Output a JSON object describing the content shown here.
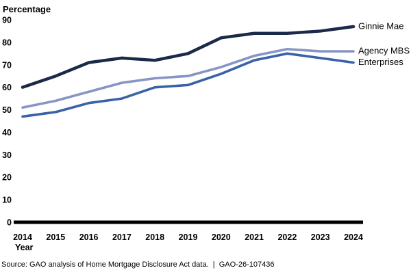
{
  "chart_data": {
    "type": "line",
    "title": "",
    "ylabel": "Percentage",
    "xlabel": "Year",
    "ylim": [
      0,
      90
    ],
    "yticks": [
      0,
      10,
      20,
      30,
      40,
      50,
      60,
      70,
      80,
      90
    ],
    "x": [
      2014,
      2015,
      2016,
      2017,
      2018,
      2019,
      2020,
      2021,
      2022,
      2023,
      2024
    ],
    "series": [
      {
        "name": "Ginnie Mae",
        "color": "#1b2a48",
        "stroke_width": 4.5,
        "values": [
          60,
          65,
          71,
          73,
          72,
          75,
          82,
          84,
          84,
          85,
          87
        ]
      },
      {
        "name": "Agency MBS",
        "color": "#8795c4",
        "stroke_width": 3.6,
        "values": [
          51,
          54,
          58,
          62,
          64,
          65,
          69,
          74,
          77,
          76,
          76
        ]
      },
      {
        "name": "Enterprises",
        "color": "#3a62a6",
        "stroke_width": 3.6,
        "values": [
          47,
          49,
          53,
          55,
          60,
          61,
          66,
          72,
          75,
          73,
          71
        ]
      }
    ],
    "grid": false,
    "legend_position": "right-end-labels",
    "axis_color": "#000000"
  },
  "source": {
    "text": "Source: GAO analysis of Home Mortgage Disclosure Act data.  |  GAO-26-107436"
  }
}
